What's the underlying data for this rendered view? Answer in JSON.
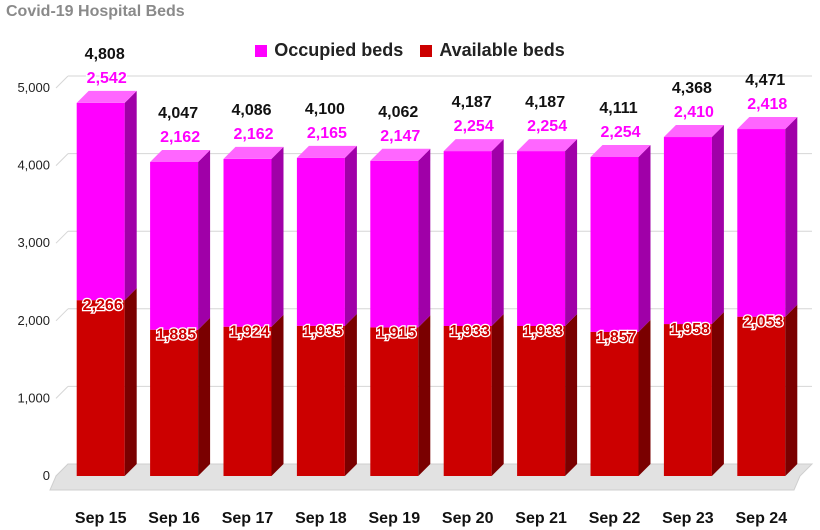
{
  "title": "Covid-19 Hospital Beds",
  "colors": {
    "occupied": "#ff00ff",
    "available": "#cc0000",
    "total_label": "#111111",
    "occupied_label": "#ff00ff",
    "available_label": "#cc0000"
  },
  "chart_data": {
    "type": "bar",
    "stacked": true,
    "title": "Covid-19 Hospital Beds",
    "xlabel": "",
    "ylabel": "",
    "ylim": [
      0,
      5000
    ],
    "yticks": [
      "0",
      "1,000",
      "2,000",
      "3,000",
      "4,000",
      "5,000"
    ],
    "grid": true,
    "legend_position": "top",
    "categories": [
      "Sep 15",
      "Sep 16",
      "Sep 17",
      "Sep 18",
      "Sep 19",
      "Sep 20",
      "Sep 21",
      "Sep 22",
      "Sep 23",
      "Sep 24"
    ],
    "series": [
      {
        "name": "Available beds",
        "values": [
          2266,
          1885,
          1924,
          1935,
          1915,
          1933,
          1933,
          1857,
          1958,
          2053
        ],
        "labels": [
          "2,266",
          "1,885",
          "1,924",
          "1,935",
          "1,915",
          "1,933",
          "1,933",
          "1,857",
          "1,958",
          "2,053"
        ]
      },
      {
        "name": "Occupied beds",
        "values": [
          2542,
          2162,
          2162,
          2165,
          2147,
          2254,
          2254,
          2254,
          2410,
          2418
        ],
        "labels": [
          "2,542",
          "2,162",
          "2,162",
          "2,165",
          "2,147",
          "2,254",
          "2,254",
          "2,254",
          "2,410",
          "2,418"
        ]
      }
    ],
    "totals": [
      "4,808",
      "4,047",
      "4,086",
      "4,100",
      "4,062",
      "4,187",
      "4,187",
      "4,111",
      "4,368",
      "4,471"
    ]
  }
}
